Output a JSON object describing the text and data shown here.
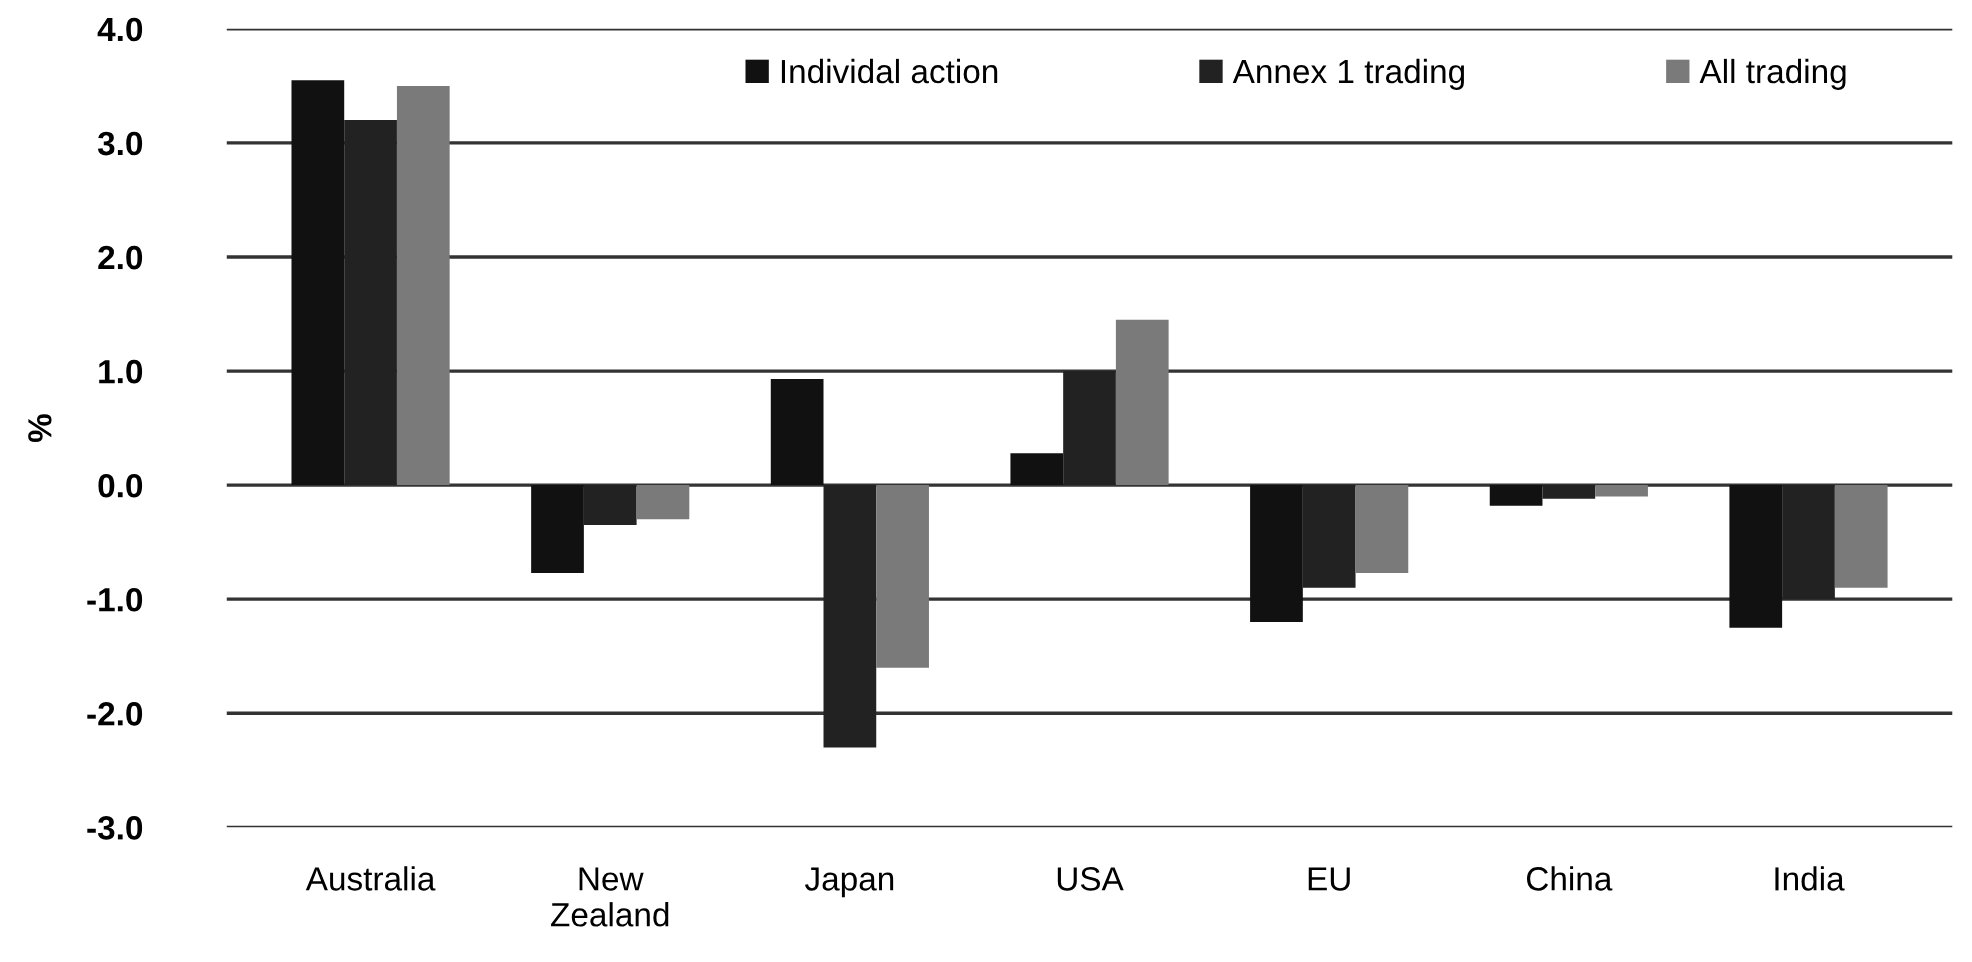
{
  "chart_data": {
    "type": "bar",
    "ylabel": "%",
    "categories": [
      "Australia",
      "New\nZealand",
      "Japan",
      "USA",
      "EU",
      "China",
      "India"
    ],
    "series": [
      {
        "name": "Individal action",
        "color": "#111111",
        "values": [
          3.55,
          -0.77,
          0.93,
          0.28,
          -1.2,
          -0.18,
          -1.25
        ]
      },
      {
        "name": "Annex 1 trading",
        "color": "#222222",
        "values": [
          3.2,
          -0.35,
          -2.3,
          1.0,
          -0.9,
          -0.12,
          -1.0
        ]
      },
      {
        "name": "All trading",
        "color": "#7a7a7a",
        "values": [
          3.5,
          -0.3,
          -1.6,
          1.45,
          -0.77,
          -0.1,
          -0.9
        ]
      }
    ],
    "ylim": [
      -3.0,
      4.0
    ],
    "yticks": [
      {
        "value": -3,
        "label": "-3.0"
      },
      {
        "value": -2,
        "label": "-2.0"
      },
      {
        "value": -1,
        "label": "-1.0"
      },
      {
        "value": 0,
        "label": "0.0"
      },
      {
        "value": 1,
        "label": "1.0"
      },
      {
        "value": 2,
        "label": "2.0"
      },
      {
        "value": 3,
        "label": "3.0"
      },
      {
        "value": 4,
        "label": "4.0"
      }
    ],
    "grid": "y",
    "legend": "top"
  }
}
